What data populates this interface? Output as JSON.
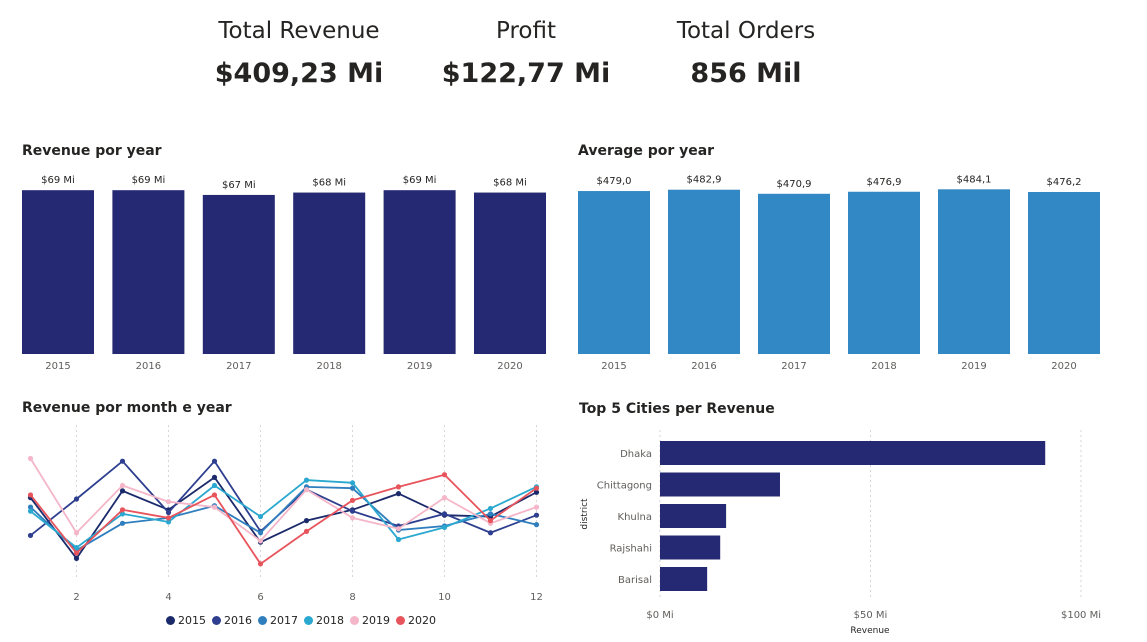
{
  "kpis": [
    {
      "label": "Total Revenue",
      "value": "$409,23 Mi"
    },
    {
      "label": "Profit",
      "value": "$122,77 Mi"
    },
    {
      "label": "Total Orders",
      "value": "856 Mil"
    }
  ],
  "chart_data": [
    {
      "type": "bar",
      "title": "Revenue por year",
      "categories": [
        "2015",
        "2016",
        "2017",
        "2018",
        "2019",
        "2020"
      ],
      "values": [
        69,
        69,
        67,
        68,
        69,
        68
      ],
      "data_labels": [
        "$69 Mi",
        "$69 Mi",
        "$67 Mi",
        "$68 Mi",
        "$69 Mi",
        "$68 Mi"
      ],
      "ylim": [
        0,
        69.5
      ],
      "color": "#252872"
    },
    {
      "type": "bar",
      "title": "Average por year",
      "categories": [
        "2015",
        "2016",
        "2017",
        "2018",
        "2019",
        "2020"
      ],
      "values": [
        479.0,
        482.9,
        470.9,
        476.9,
        484.1,
        476.2
      ],
      "data_labels": [
        "$479,0",
        "$482,9",
        "$470,9",
        "$476,9",
        "$484,1",
        "$476,2"
      ],
      "ylim": [
        0,
        485
      ],
      "color": "#3288c4"
    },
    {
      "type": "line",
      "title": "Revenue por month e year",
      "x": [
        1,
        2,
        3,
        4,
        5,
        6,
        7,
        8,
        9,
        10,
        11,
        12
      ],
      "xticks": [
        "2",
        "4",
        "6",
        "8",
        "10",
        "12"
      ],
      "xtick_values": [
        2,
        4,
        6,
        8,
        10,
        12
      ],
      "ylim": [
        0,
        10
      ],
      "legend_placement": "bottom",
      "series": [
        {
          "name": "2015",
          "color": "#1b2a6b",
          "values": [
            6.1,
            1.6,
            6.6,
            5.2,
            7.6,
            2.8,
            4.4,
            5.2,
            6.4,
            4.8,
            4.7,
            6.5
          ]
        },
        {
          "name": "2016",
          "color": "#2e3f8f",
          "values": [
            3.3,
            6.0,
            8.8,
            5.0,
            8.8,
            3.6,
            6.7,
            5.1,
            4.0,
            4.9,
            3.5,
            4.8
          ]
        },
        {
          "name": "2017",
          "color": "#2f7ebd",
          "values": [
            5.4,
            2.2,
            4.2,
            4.6,
            5.5,
            3.5,
            6.9,
            6.8,
            3.7,
            4.0,
            4.9,
            4.1
          ]
        },
        {
          "name": "2018",
          "color": "#2aa8cf",
          "values": [
            5.1,
            2.4,
            4.9,
            4.3,
            7.0,
            4.7,
            7.4,
            7.2,
            3.0,
            3.9,
            5.3,
            6.9
          ]
        },
        {
          "name": "2019",
          "color": "#f4b6c8",
          "values": [
            9.0,
            3.5,
            7.0,
            5.8,
            5.4,
            2.9,
            6.7,
            4.6,
            3.8,
            6.1,
            4.2,
            5.4
          ]
        },
        {
          "name": "2020",
          "color": "#e8545c",
          "values": [
            6.3,
            2.0,
            5.2,
            4.6,
            6.3,
            1.2,
            3.6,
            5.9,
            6.9,
            7.8,
            4.4,
            6.8
          ]
        }
      ]
    },
    {
      "type": "bar",
      "orientation": "horizontal",
      "title": "Top 5 Cities per Revenue",
      "categories": [
        "Dhaka",
        "Chittagong",
        "Khulna",
        "Rajshahi",
        "Barisal"
      ],
      "values": [
        91.5,
        28.5,
        15.7,
        14.3,
        11.2
      ],
      "xlim": [
        0,
        100
      ],
      "xticks": [
        "$0 Mi",
        "$50 Mi",
        "$100 Mi"
      ],
      "xtick_values": [
        0,
        50,
        100
      ],
      "xlabel": "Revenue",
      "ylabel": "district",
      "color": "#252872"
    }
  ]
}
